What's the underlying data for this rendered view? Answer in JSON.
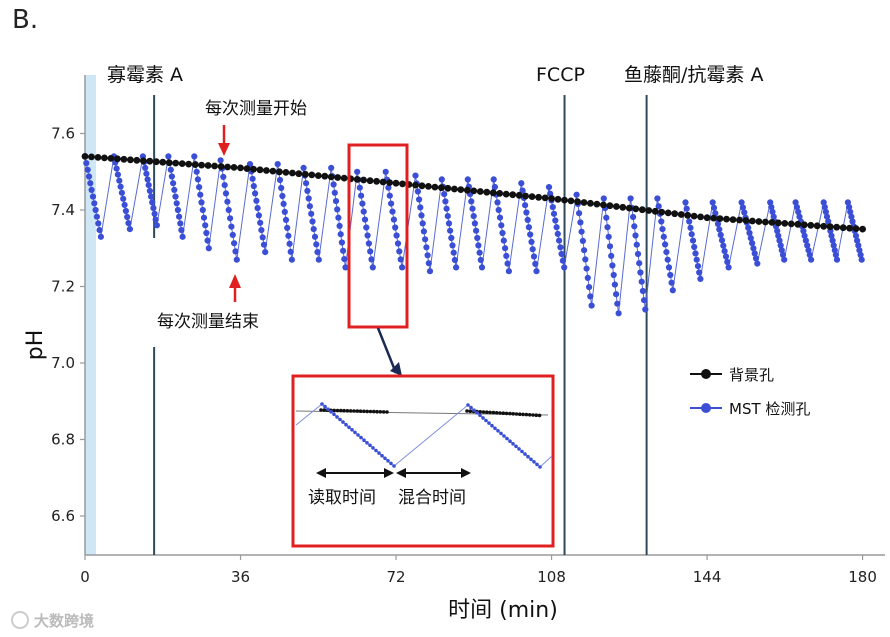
{
  "panel_label": "B.",
  "watermark": "大数跨境",
  "chart_data": {
    "type": "line",
    "xlabel": "时间 (min)",
    "ylabel": "pH",
    "xlim": [
      0,
      182
    ],
    "ylim": [
      6.5,
      7.76
    ],
    "x_ticks": [
      "0",
      "36",
      "72",
      "108",
      "144",
      "180"
    ],
    "y_ticks": [
      "6.6",
      "6.8",
      "7.0",
      "7.2",
      "7.4",
      "7.6"
    ],
    "grid": false,
    "legend_position": "right",
    "injections": [
      {
        "label": "寡霉素 A",
        "x": 16
      },
      {
        "label": "FCCP",
        "x": 111
      },
      {
        "label": "鱼藤酮/抗霉素 A",
        "x": 130
      }
    ],
    "series": [
      {
        "name": "背景孔",
        "color": "#111111",
        "x": [
          0,
          36,
          72,
          108,
          144,
          180
        ],
        "y": [
          7.54,
          7.51,
          7.47,
          7.43,
          7.38,
          7.35
        ]
      },
      {
        "name": "MST 检测孔",
        "color": "#3b4fd6",
        "cycles": [
          {
            "start": 0,
            "y_top": 7.54,
            "y_end": 7.33
          },
          {
            "start": 6.7,
            "y_top": 7.54,
            "y_end": 7.35
          },
          {
            "start": 13.4,
            "y_top": 7.54,
            "y_end": 7.36
          },
          {
            "start": 19.3,
            "y_top": 7.54,
            "y_end": 7.33
          },
          {
            "start": 25.3,
            "y_top": 7.54,
            "y_end": 7.3
          },
          {
            "start": 31.4,
            "y_top": 7.53,
            "y_end": 7.27
          },
          {
            "start": 38.2,
            "y_top": 7.52,
            "y_end": 7.29
          },
          {
            "start": 44.6,
            "y_top": 7.52,
            "y_end": 7.27
          },
          {
            "start": 50.6,
            "y_top": 7.51,
            "y_end": 7.27
          },
          {
            "start": 57.0,
            "y_top": 7.51,
            "y_end": 7.25
          },
          {
            "start": 63.0,
            "y_top": 7.5,
            "y_end": 7.25
          },
          {
            "start": 69.6,
            "y_top": 7.5,
            "y_end": 7.25
          },
          {
            "start": 76.5,
            "y_top": 7.49,
            "y_end": 7.24
          },
          {
            "start": 82.6,
            "y_top": 7.48,
            "y_end": 7.25
          },
          {
            "start": 88.6,
            "y_top": 7.48,
            "y_end": 7.25
          },
          {
            "start": 94.6,
            "y_top": 7.48,
            "y_end": 7.24
          },
          {
            "start": 101.0,
            "y_top": 7.47,
            "y_end": 7.24
          },
          {
            "start": 107.4,
            "y_top": 7.46,
            "y_end": 7.25
          },
          {
            "start": 113.8,
            "y_top": 7.44,
            "y_end": 7.15
          },
          {
            "start": 120.1,
            "y_top": 7.43,
            "y_end": 7.13
          },
          {
            "start": 126.3,
            "y_top": 7.43,
            "y_end": 7.14
          },
          {
            "start": 132.5,
            "y_top": 7.43,
            "y_end": 7.19
          },
          {
            "start": 139.0,
            "y_top": 7.42,
            "y_end": 7.22
          },
          {
            "start": 145.3,
            "y_top": 7.42,
            "y_end": 7.25
          },
          {
            "start": 152.0,
            "y_top": 7.42,
            "y_end": 7.26
          },
          {
            "start": 158.6,
            "y_top": 7.42,
            "y_end": 7.27
          },
          {
            "start": 164.5,
            "y_top": 7.42,
            "y_end": 7.27
          },
          {
            "start": 171.0,
            "y_top": 7.42,
            "y_end": 7.27
          },
          {
            "start": 176.6,
            "y_top": 7.42,
            "y_end": 7.27
          }
        ]
      }
    ],
    "annotations": {
      "measure_start": "每次测量开始",
      "measure_end": "每次测量结束",
      "read_time": "读取时间",
      "mix_time": "混合时间"
    }
  }
}
